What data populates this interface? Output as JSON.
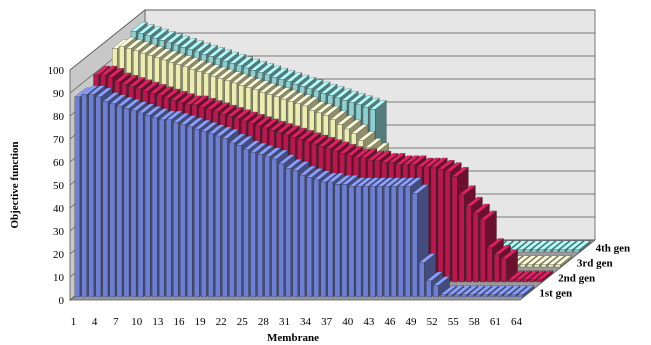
{
  "chart_data": {
    "type": "bar",
    "style": "3d-column",
    "xlabel": "Membrane",
    "ylabel": "Objective function",
    "ylim": [
      0,
      100
    ],
    "yticks": [
      0,
      10,
      20,
      30,
      40,
      50,
      60,
      70,
      80,
      90,
      100
    ],
    "xtick_labels": [
      "1",
      "4",
      "7",
      "10",
      "13",
      "16",
      "19",
      "22",
      "25",
      "28",
      "31",
      "34",
      "37",
      "40",
      "43",
      "46",
      "49",
      "52",
      "55",
      "58",
      "61",
      "64"
    ],
    "categories": [
      1,
      2,
      3,
      4,
      5,
      6,
      7,
      8,
      9,
      10,
      11,
      12,
      13,
      14,
      15,
      16,
      17,
      18,
      19,
      20,
      21,
      22,
      23,
      24,
      25,
      26,
      27,
      28,
      29,
      30,
      31,
      32,
      33,
      34,
      35,
      36,
      37,
      38,
      39,
      40,
      41,
      42,
      43,
      44,
      45,
      46,
      47,
      48,
      49,
      50,
      51,
      52,
      53,
      54,
      55,
      56,
      57,
      58,
      59,
      60,
      61,
      62,
      63,
      64
    ],
    "depth_labels": [
      "1st gen",
      "2nd gen",
      "3rd gen",
      "4th gen"
    ],
    "grid": true,
    "series": [
      {
        "name": "1st gen",
        "color": "#6f7fd0",
        "values": [
          87,
          88,
          88,
          87,
          85,
          84,
          83,
          82,
          81,
          80,
          79,
          78,
          77,
          77,
          76,
          75,
          74,
          73,
          72,
          71,
          70,
          69,
          67,
          66,
          64,
          63,
          62,
          61,
          60,
          58,
          56,
          55,
          53,
          52,
          51,
          50,
          50,
          49,
          49,
          48,
          48,
          48,
          48,
          48,
          48,
          48,
          48,
          48,
          45,
          15,
          7,
          5,
          1,
          1,
          1,
          1,
          1,
          1,
          1,
          1,
          1,
          1,
          1,
          1
        ]
      },
      {
        "name": "2nd gen",
        "color": "#b41a4e",
        "values": [
          90,
          90,
          89,
          87,
          86,
          85,
          84,
          83,
          82,
          81,
          80,
          79,
          78,
          77,
          77,
          76,
          75,
          74,
          73,
          72,
          71,
          70,
          69,
          68,
          67,
          66,
          65,
          64,
          63,
          62,
          61,
          60,
          59,
          58,
          57,
          56,
          55,
          54,
          54,
          53,
          53,
          52,
          52,
          51,
          51,
          51,
          50,
          50,
          50,
          49,
          48,
          46,
          38,
          33,
          30,
          27,
          15,
          12,
          10,
          1,
          1,
          1,
          1,
          1
        ]
      },
      {
        "name": "3rd gen",
        "color": "#ecedb3",
        "values": [
          95,
          96,
          95,
          94,
          93,
          92,
          91,
          90,
          89,
          88,
          87,
          86,
          85,
          84,
          83,
          82,
          81,
          80,
          79,
          78,
          77,
          76,
          75,
          74,
          73,
          72,
          71,
          70,
          68,
          67,
          66,
          64,
          62,
          60,
          58,
          55,
          52,
          50,
          1,
          1,
          1,
          1,
          1,
          1,
          1,
          1,
          1,
          1,
          1,
          1,
          1,
          1,
          1,
          1,
          1,
          1,
          1,
          1,
          1,
          1,
          1,
          1,
          1,
          1
        ]
      },
      {
        "name": "4th gen",
        "color": "#8ed0d0",
        "values": [
          96,
          95,
          94,
          93,
          92,
          91,
          90,
          89,
          88,
          87,
          86,
          85,
          84,
          83,
          82,
          81,
          80,
          79,
          78,
          77,
          76,
          75,
          74,
          73,
          72,
          71,
          70,
          69,
          68,
          67,
          66,
          65,
          64,
          63,
          62,
          1,
          1,
          1,
          1,
          1,
          1,
          1,
          1,
          1,
          1,
          1,
          1,
          1,
          1,
          1,
          1,
          1,
          1,
          1,
          1,
          1,
          1,
          1,
          1,
          1,
          1,
          1,
          1,
          1
        ]
      }
    ]
  }
}
